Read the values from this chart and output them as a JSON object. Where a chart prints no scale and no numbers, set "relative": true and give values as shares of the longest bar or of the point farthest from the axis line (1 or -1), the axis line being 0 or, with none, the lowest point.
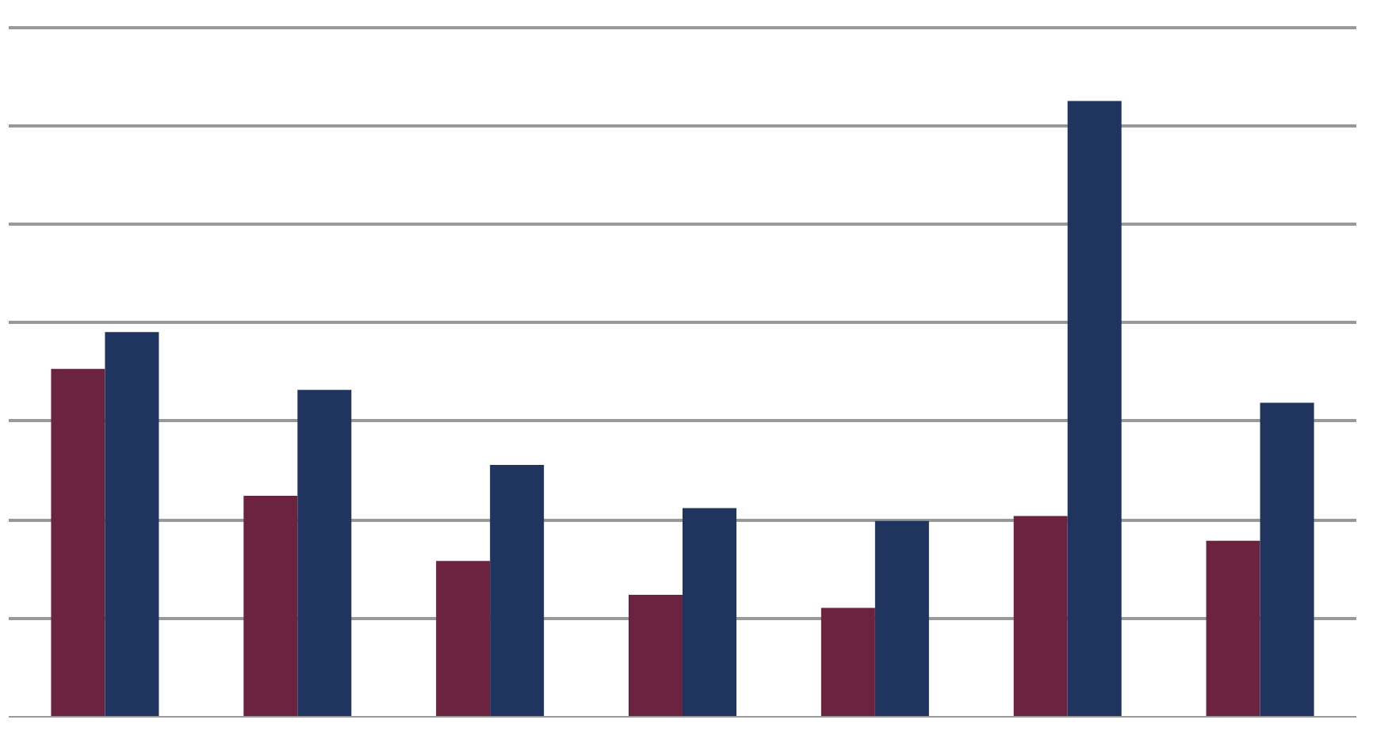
{
  "chart_data": {
    "type": "bar",
    "relative": true,
    "grid": "y",
    "categories": [
      null,
      null,
      null,
      null,
      null,
      null,
      null
    ],
    "series": [
      {
        "color": "#6b2340",
        "values": [
          0.565,
          0.359,
          0.253,
          0.198,
          0.177,
          0.326,
          0.286
        ]
      },
      {
        "color": "#1f3560",
        "values": [
          0.625,
          0.531,
          0.409,
          0.339,
          0.318,
          1,
          0.51
        ]
      }
    ]
  }
}
